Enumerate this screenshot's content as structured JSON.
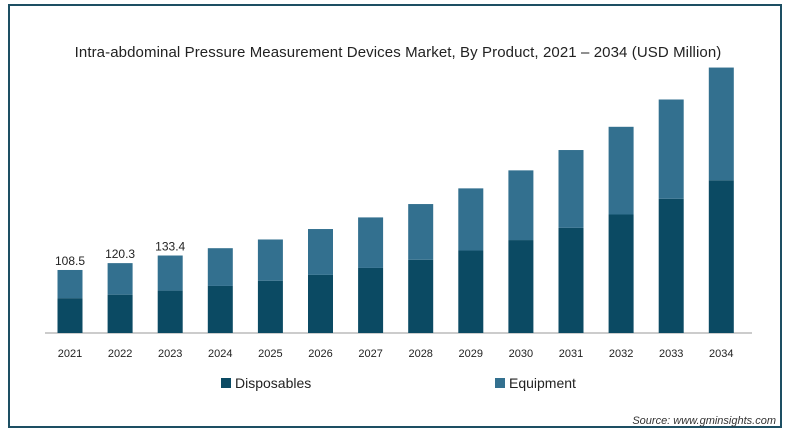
{
  "chart_data": {
    "type": "bar",
    "stacked": true,
    "title": "Intra-abdominal Pressure Measurement Devices Market, By Product, 2021 – 2034 (USD Million)",
    "categories": [
      "2021",
      "2022",
      "2023",
      "2024",
      "2025",
      "2026",
      "2027",
      "2028",
      "2029",
      "2030",
      "2031",
      "2032",
      "2033",
      "2034"
    ],
    "series": [
      {
        "name": "Disposables",
        "color": "#0b4a63",
        "values": [
          60,
          66,
          73,
          81,
          90,
          100,
          112,
          126,
          142,
          160,
          181,
          204,
          231,
          263
        ]
      },
      {
        "name": "Equipment",
        "color": "#33708f",
        "values": [
          48.5,
          54.3,
          60.4,
          65,
          71,
          79,
          87,
          96,
          107,
          120,
          134,
          151,
          171,
          194
        ]
      }
    ],
    "data_labels": [
      "108.5",
      "120.3",
      "133.4",
      "",
      "",
      "",
      "",
      "",
      "",
      "",
      "",
      "",
      "",
      ""
    ],
    "ylim": [
      0,
      470
    ],
    "grid": false,
    "legend": "bottom"
  },
  "source": "Source: www.gminsights.com"
}
